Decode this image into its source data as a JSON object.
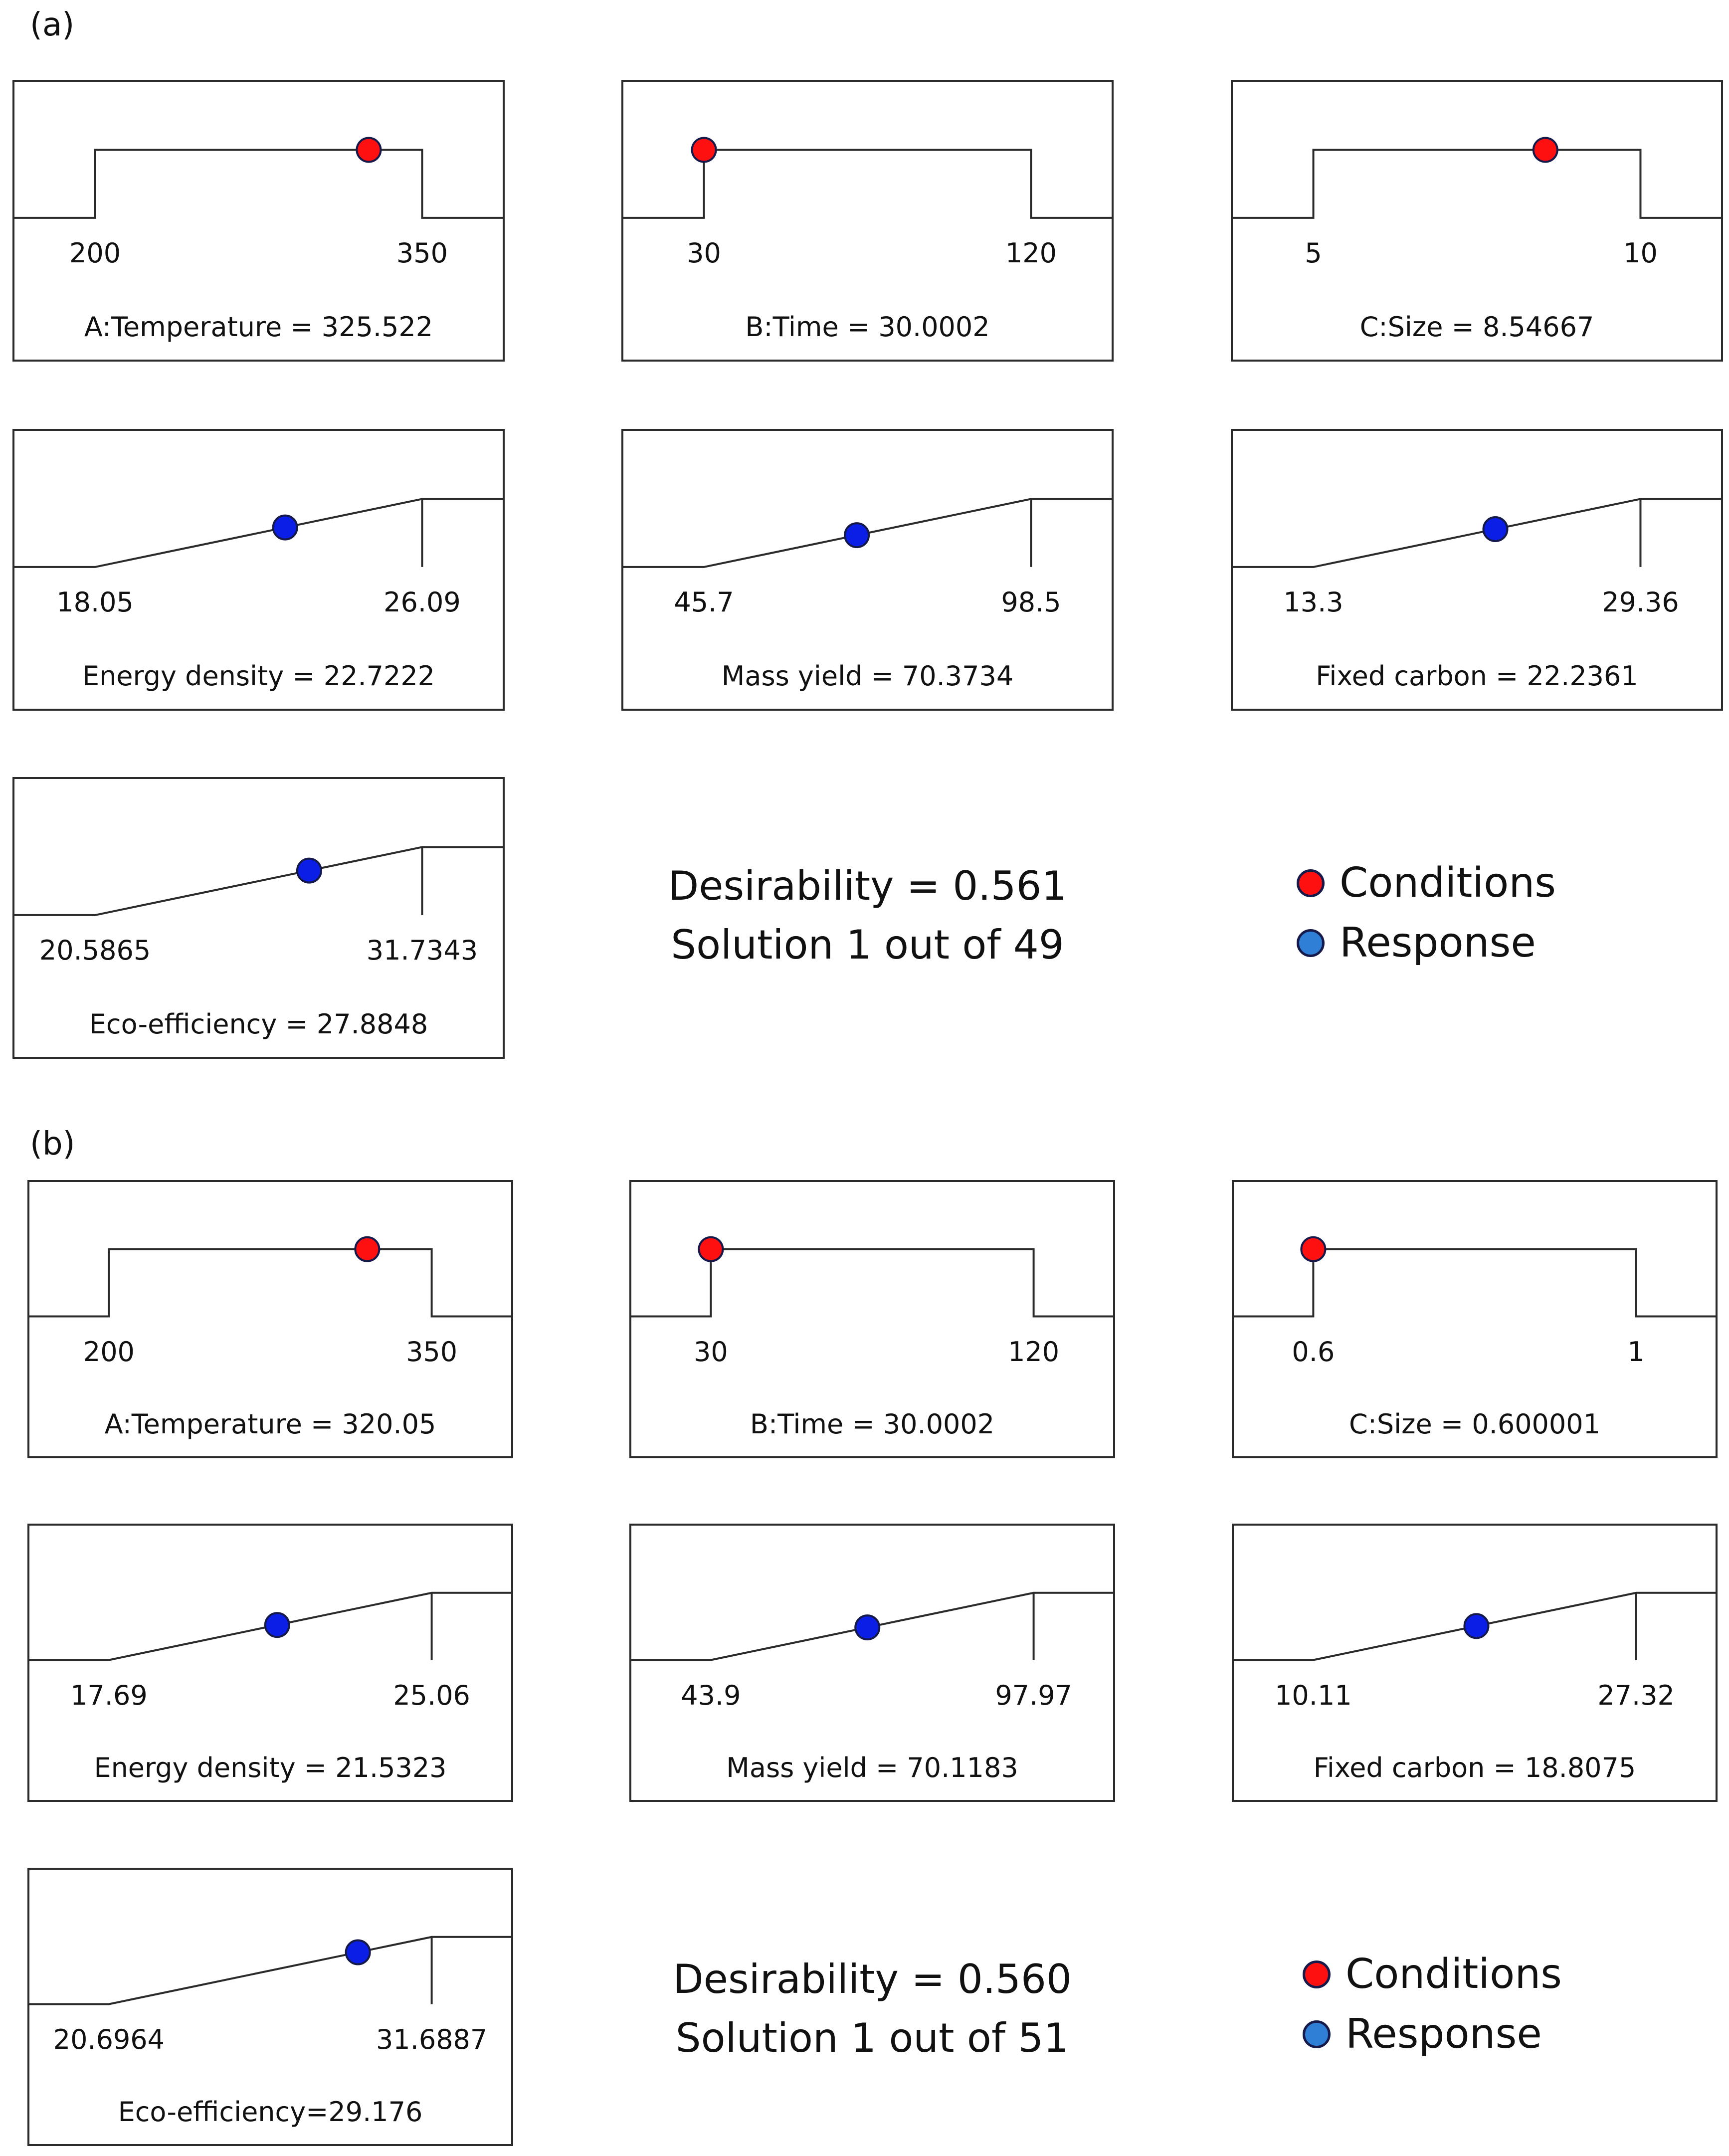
{
  "colors": {
    "conditions": "#ff1010",
    "response": "#0a1ee6",
    "legend_response": "#2f7fd6",
    "line": "#2b2b2b"
  },
  "chart_data": [
    {
      "type": "desirability-ramps",
      "section": "(a)",
      "factors": [
        {
          "name": "A:Temperature",
          "shape": "range",
          "low": 200,
          "high": 350,
          "low_label": "200",
          "high_label": "350",
          "value": 325.522,
          "caption": "A:Temperature = 325.522",
          "marker": "conditions"
        },
        {
          "name": "B:Time",
          "shape": "range",
          "low": 30,
          "high": 120,
          "low_label": "30",
          "high_label": "120",
          "value": 30.0002,
          "caption": "B:Time = 30.0002",
          "marker": "conditions"
        },
        {
          "name": "C:Size",
          "shape": "range",
          "low": 5,
          "high": 10,
          "low_label": "5",
          "high_label": "10",
          "value": 8.54667,
          "caption": "C:Size = 8.54667",
          "marker": "conditions"
        }
      ],
      "responses": [
        {
          "name": "Energy density",
          "shape": "maximize",
          "low": 18.05,
          "high": 26.09,
          "low_label": "18.05",
          "high_label": "26.09",
          "value": 22.7222,
          "caption": "Energy density = 22.7222",
          "marker": "response"
        },
        {
          "name": "Mass yield",
          "shape": "maximize",
          "low": 45.7,
          "high": 98.5,
          "low_label": "45.7",
          "high_label": "98.5",
          "value": 70.3734,
          "caption": "Mass yield = 70.3734",
          "marker": "response"
        },
        {
          "name": "Fixed carbon",
          "shape": "maximize",
          "low": 13.3,
          "high": 29.36,
          "low_label": "13.3",
          "high_label": "29.36",
          "value": 22.2361,
          "caption": "Fixed carbon = 22.2361",
          "marker": "response"
        },
        {
          "name": "Eco-efficiency",
          "shape": "maximize",
          "low": 20.5865,
          "high": 31.7343,
          "low_label": "20.5865",
          "high_label": "31.7343",
          "value": 27.8848,
          "caption": "Eco-efficiency = 27.8848",
          "marker": "response"
        }
      ],
      "summary": {
        "desirability": "Desirability = 0.561",
        "solution": "Solution 1 out of 49"
      },
      "legend": [
        "Conditions",
        "Response"
      ]
    },
    {
      "type": "desirability-ramps",
      "section": "(b)",
      "factors": [
        {
          "name": "A:Temperature",
          "shape": "range",
          "low": 200,
          "high": 350,
          "low_label": "200",
          "high_label": "350",
          "value": 320.05,
          "caption": "A:Temperature = 320.05",
          "marker": "conditions"
        },
        {
          "name": "B:Time",
          "shape": "range",
          "low": 30,
          "high": 120,
          "low_label": "30",
          "high_label": "120",
          "value": 30.0002,
          "caption": "B:Time = 30.0002",
          "marker": "conditions"
        },
        {
          "name": "C:Size",
          "shape": "range",
          "low": 0.6,
          "high": 1,
          "low_label": "0.6",
          "high_label": "1",
          "value": 0.600001,
          "caption": "C:Size = 0.600001",
          "marker": "conditions"
        }
      ],
      "responses": [
        {
          "name": "Energy density",
          "shape": "maximize",
          "low": 17.69,
          "high": 25.06,
          "low_label": "17.69",
          "high_label": "25.06",
          "value": 21.5323,
          "caption": "Energy density = 21.5323",
          "marker": "response"
        },
        {
          "name": "Mass yield",
          "shape": "maximize",
          "low": 43.9,
          "high": 97.97,
          "low_label": "43.9",
          "high_label": "97.97",
          "value": 70.1183,
          "caption": "Mass yield = 70.1183",
          "marker": "response"
        },
        {
          "name": "Fixed carbon",
          "shape": "maximize",
          "low": 10.11,
          "high": 27.32,
          "low_label": "10.11",
          "high_label": "27.32",
          "value": 18.8075,
          "caption": "Fixed carbon = 18.8075",
          "marker": "response"
        },
        {
          "name": "Eco-efficiency",
          "shape": "maximize",
          "low": 20.6964,
          "high": 31.6887,
          "low_label": "20.6964",
          "high_label": "31.6887",
          "value": 29.176,
          "caption": "Eco-efficiency=29.176",
          "marker": "response"
        }
      ],
      "summary": {
        "desirability": "Desirability = 0.560",
        "solution": "Solution 1 out of 51"
      },
      "legend": [
        "Conditions",
        "Response"
      ]
    }
  ]
}
